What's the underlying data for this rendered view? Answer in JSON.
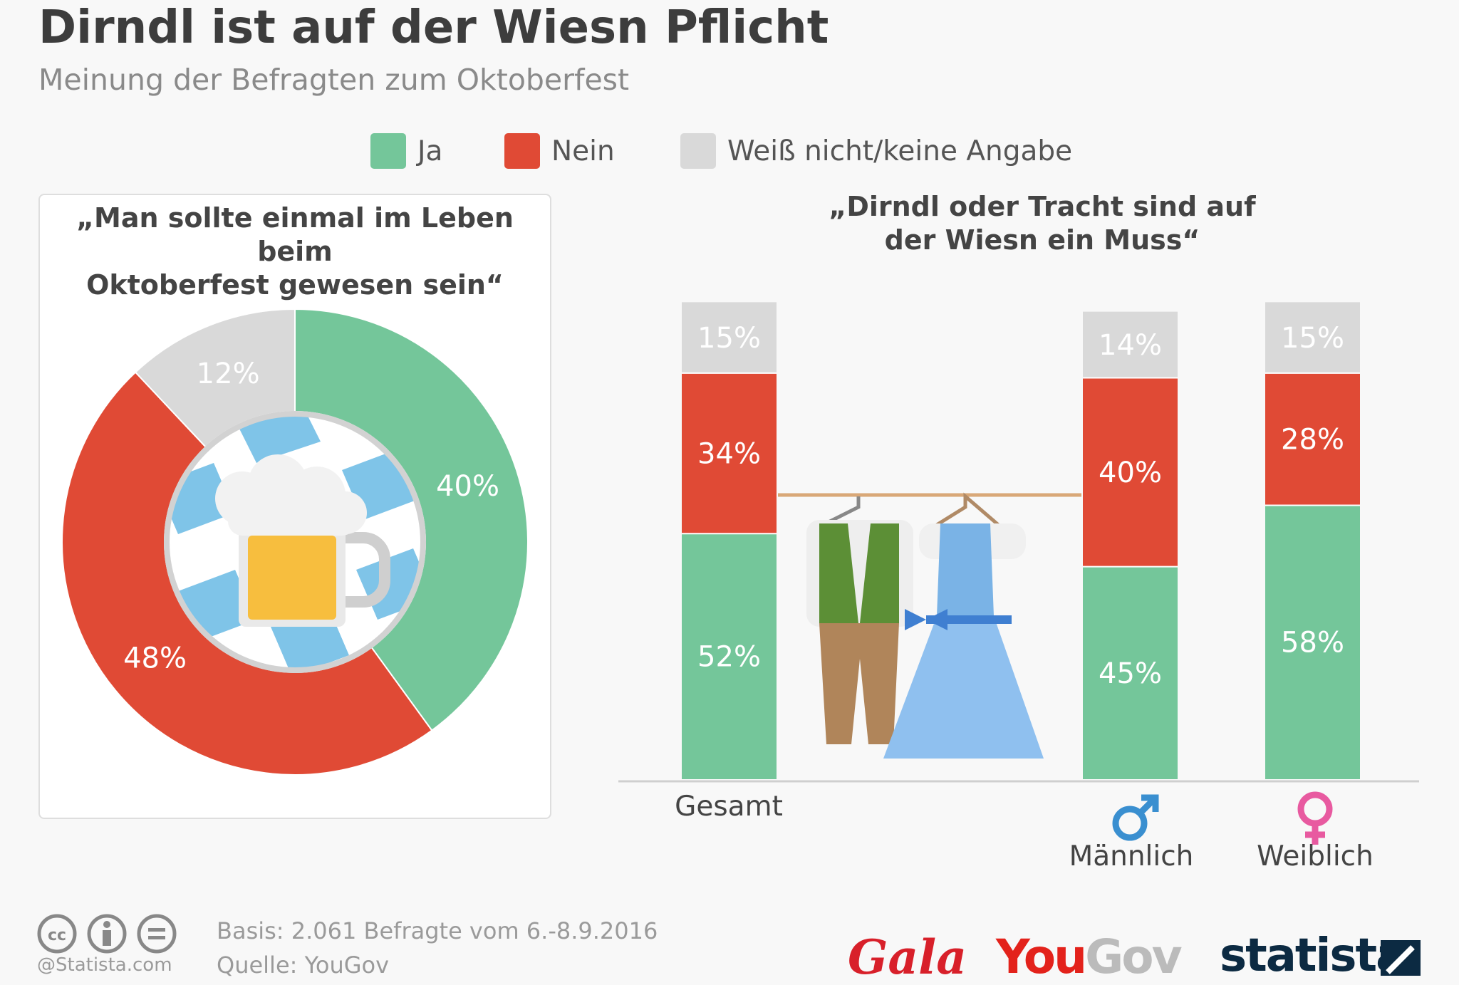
{
  "header": {
    "title": "Dirndl ist auf der Wiesn Pflicht",
    "subtitle": "Meinung der Befragten zum Oktoberfest"
  },
  "legend": [
    {
      "label": "Ja",
      "color": "#74c69a"
    },
    {
      "label": "Nein",
      "color": "#e04a35"
    },
    {
      "label": "Weiß nicht/keine Angabe",
      "color": "#d9d9d9"
    }
  ],
  "chart_data": [
    {
      "type": "pie",
      "variant": "donut",
      "title": "„Man sollte einmal im Leben beim Oktoberfest gewesen sein“",
      "title_lines": [
        "„Man sollte einmal im Leben beim",
        "Oktoberfest gewesen sein“"
      ],
      "slices": [
        {
          "name": "Ja",
          "value": 40,
          "label": "40%",
          "color": "#74c69a"
        },
        {
          "name": "Nein",
          "value": 48,
          "label": "48%",
          "color": "#e04a35"
        },
        {
          "name": "Weiß nicht/keine Angabe",
          "value": 12,
          "label": "12%",
          "color": "#d9d9d9"
        }
      ]
    },
    {
      "type": "bar",
      "stacked": true,
      "title": "„Dirndl oder Tracht sind auf der Wiesn ein Muss“",
      "title_lines": [
        "„Dirndl oder Tracht sind auf",
        "der Wiesn ein Muss“"
      ],
      "categories": [
        "Gesamt",
        "Männlich",
        "Weiblich"
      ],
      "series": [
        {
          "name": "Ja",
          "color": "#74c69a",
          "values": [
            52,
            45,
            58
          ],
          "labels": [
            "52%",
            "45%",
            "58%"
          ]
        },
        {
          "name": "Nein",
          "color": "#e04a35",
          "values": [
            34,
            40,
            28
          ],
          "labels": [
            "34%",
            "40%",
            "28%"
          ]
        },
        {
          "name": "Weiß nicht/keine Angabe",
          "color": "#d9d9d9",
          "values": [
            15,
            14,
            15
          ],
          "labels": [
            "15%",
            "14%",
            "15%"
          ]
        }
      ],
      "ylim": [
        0,
        100
      ]
    }
  ],
  "footer": {
    "basis": "Basis: 2.061 Befragte vom 6.-8.9.2016",
    "source": "Quelle: YouGov",
    "credit": "@Statista.com",
    "logos": {
      "gala": "Gala",
      "you": "You",
      "gov": "Gov",
      "statista": "statista"
    }
  }
}
